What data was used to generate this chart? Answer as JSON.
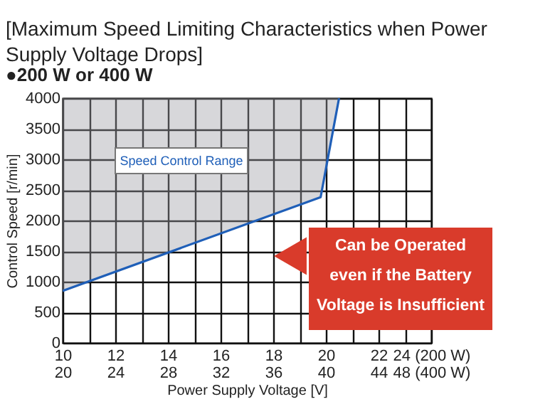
{
  "chart_data": {
    "type": "line",
    "title": "[Maximum Speed Limiting Characteristics when Power Supply Voltage Drops]",
    "subtitle": "●200 W or 400 W",
    "xlabel": "Power Supply Voltage [V]",
    "ylabel": "Control Speed [r/min]",
    "x": [
      10,
      19.8,
      20.5
    ],
    "series": [
      {
        "color": "#1f5fb8",
        "values": [
          850,
          2380,
          4000
        ],
        "lower": [
          850,
          2380,
          4000
        ],
        "upper": [
          4000,
          4000,
          4000
        ]
      }
    ],
    "xlim": [
      10,
      24
    ],
    "xticks": [
      10,
      {
        "value": 11,
        "label": null
      },
      12,
      {
        "value": 13,
        "label": null
      },
      14,
      {
        "value": 15,
        "label": null
      },
      16,
      {
        "value": 17,
        "label": null
      },
      18,
      {
        "value": 19,
        "label": null
      },
      20,
      {
        "value": 21,
        "label": null
      },
      22,
      {
        "value": 23,
        "label": null
      },
      {
        "value": 24,
        "label": "24 (200 W)"
      }
    ],
    "x2lim": [
      20,
      48
    ],
    "x2ticks": [
      20,
      24,
      28,
      32,
      36,
      40,
      44,
      {
        "value": 48,
        "label": "48 (400 W)"
      }
    ],
    "ylim": [
      0,
      4000
    ],
    "yticks": [
      0,
      500,
      1000,
      1500,
      2000,
      2500,
      3000,
      3500,
      4000
    ],
    "grid": true,
    "annotations": [
      "Speed Control Range",
      "Can be Operated\neven if the Battery\nVoltage is Insufficient"
    ]
  }
}
